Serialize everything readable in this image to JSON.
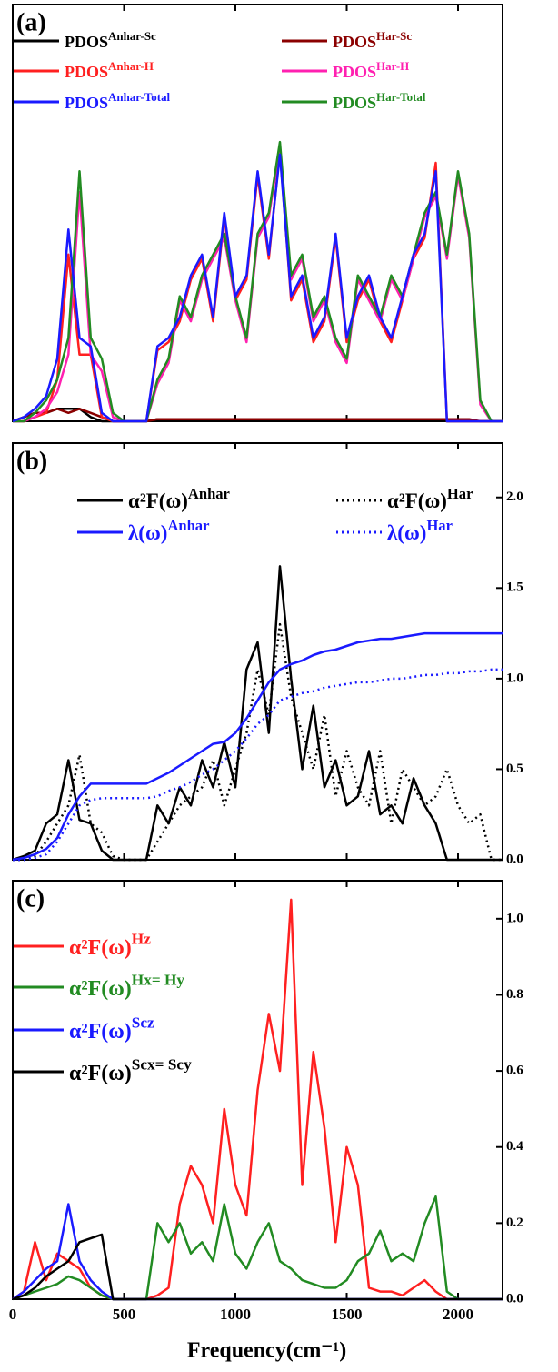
{
  "chart_data": [
    {
      "type": "line",
      "title": "(a)",
      "x": [
        0,
        50,
        100,
        150,
        200,
        250,
        300,
        350,
        400,
        450,
        500,
        550,
        600,
        650,
        700,
        750,
        800,
        850,
        900,
        950,
        1000,
        1050,
        1100,
        1150,
        1200,
        1250,
        1300,
        1350,
        1400,
        1450,
        1500,
        1550,
        1600,
        1650,
        1700,
        1750,
        1800,
        1850,
        1900,
        1950,
        2000,
        2050,
        2100,
        2150,
        2200
      ],
      "xlim": [
        0,
        2200
      ],
      "xticks": [
        0,
        500,
        1000,
        1500,
        2000
      ],
      "ylim": [
        0,
        1
      ],
      "series": [
        {
          "name": "PDOS",
          "superscript": "Anhar-Sc",
          "color": "#000000",
          "values": [
            0,
            0.01,
            0.02,
            0.02,
            0.03,
            0.03,
            0.03,
            0.01,
            0,
            0,
            0,
            0,
            0,
            0.005,
            0.005,
            0.005,
            0.005,
            0.005,
            0.005,
            0.005,
            0.005,
            0.005,
            0.005,
            0.005,
            0.005,
            0.005,
            0.005,
            0.005,
            0.005,
            0.005,
            0.005,
            0.005,
            0.005,
            0.005,
            0.005,
            0.005,
            0.005,
            0.005,
            0.005,
            0,
            0,
            0,
            0,
            0,
            0
          ]
        },
        {
          "name": "PDOS",
          "superscript": "Har-Sc",
          "color": "#8b0000",
          "values": [
            0,
            0.01,
            0.02,
            0.02,
            0.03,
            0.02,
            0.03,
            0.02,
            0.01,
            0,
            0,
            0,
            0,
            0.005,
            0.005,
            0.005,
            0.005,
            0.005,
            0.005,
            0.005,
            0.005,
            0.005,
            0.005,
            0.005,
            0.005,
            0.005,
            0.005,
            0.005,
            0.005,
            0.005,
            0.005,
            0.005,
            0.005,
            0.005,
            0.005,
            0.005,
            0.005,
            0.005,
            0.005,
            0.005,
            0.005,
            0.005,
            0,
            0,
            0
          ]
        },
        {
          "name": "PDOS",
          "superscript": "Anhar-H",
          "color": "#ff2020",
          "values": [
            0,
            0,
            0.01,
            0.02,
            0.1,
            0.4,
            0.16,
            0.16,
            0.01,
            0,
            0,
            0,
            0,
            0.17,
            0.19,
            0.24,
            0.34,
            0.39,
            0.24,
            0.49,
            0.29,
            0.34,
            0.59,
            0.39,
            0.65,
            0.29,
            0.34,
            0.19,
            0.24,
            0.44,
            0.19,
            0.29,
            0.34,
            0.24,
            0.19,
            0.29,
            0.39,
            0.44,
            0.62,
            0,
            0,
            0,
            0,
            0,
            0
          ]
        },
        {
          "name": "PDOS",
          "superscript": "Har-H",
          "color": "#ff20b0",
          "values": [
            0,
            0,
            0.01,
            0.03,
            0.07,
            0.16,
            0.55,
            0.16,
            0.12,
            0.01,
            0,
            0,
            0,
            0.09,
            0.14,
            0.29,
            0.24,
            0.34,
            0.39,
            0.44,
            0.29,
            0.19,
            0.44,
            0.49,
            0.66,
            0.34,
            0.39,
            0.24,
            0.29,
            0.19,
            0.14,
            0.34,
            0.29,
            0.24,
            0.34,
            0.29,
            0.39,
            0.49,
            0.54,
            0.39,
            0.59,
            0.44,
            0.04,
            0,
            0
          ]
        },
        {
          "name": "PDOS",
          "superscript": "Har-Total",
          "color": "#228b22",
          "values": [
            0,
            0,
            0.02,
            0.05,
            0.1,
            0.2,
            0.6,
            0.2,
            0.15,
            0.02,
            0,
            0,
            0,
            0.1,
            0.15,
            0.3,
            0.25,
            0.35,
            0.4,
            0.45,
            0.3,
            0.2,
            0.45,
            0.5,
            0.67,
            0.35,
            0.4,
            0.25,
            0.3,
            0.2,
            0.15,
            0.35,
            0.3,
            0.25,
            0.35,
            0.3,
            0.4,
            0.5,
            0.55,
            0.4,
            0.6,
            0.45,
            0.05,
            0,
            0
          ]
        },
        {
          "name": "PDOS",
          "superscript": "Anhar-Total",
          "color": "#1a1aff",
          "values": [
            0,
            0.01,
            0.03,
            0.06,
            0.15,
            0.46,
            0.2,
            0.18,
            0.02,
            0,
            0,
            0,
            0,
            0.18,
            0.2,
            0.25,
            0.35,
            0.4,
            0.25,
            0.5,
            0.3,
            0.35,
            0.6,
            0.4,
            0.64,
            0.3,
            0.35,
            0.2,
            0.25,
            0.45,
            0.2,
            0.3,
            0.35,
            0.25,
            0.2,
            0.3,
            0.4,
            0.45,
            0.6,
            0,
            0,
            0,
            0,
            0,
            0
          ]
        }
      ]
    },
    {
      "type": "line",
      "title": "(b)",
      "x": [
        0,
        50,
        100,
        150,
        200,
        250,
        300,
        350,
        400,
        450,
        500,
        550,
        600,
        650,
        700,
        750,
        800,
        850,
        900,
        950,
        1000,
        1050,
        1100,
        1150,
        1200,
        1250,
        1300,
        1350,
        1400,
        1450,
        1500,
        1550,
        1600,
        1650,
        1700,
        1750,
        1800,
        1850,
        1900,
        1950,
        2000,
        2050,
        2100,
        2150,
        2200
      ],
      "xlim": [
        0,
        2200
      ],
      "xticks": [
        0,
        500,
        1000,
        1500,
        2000
      ],
      "ylim": [
        0,
        2.3
      ],
      "yticks": [
        {
          "value": 0,
          "label": "0.0"
        },
        {
          "value": 0.5,
          "label": "0.5"
        },
        {
          "value": 1,
          "label": "1.0"
        },
        {
          "value": 1.5,
          "label": "1.5"
        },
        {
          "value": 2,
          "label": "2.0"
        }
      ],
      "series": [
        {
          "name": "α²F(ω)",
          "superscript": "Anhar",
          "color": "#000000",
          "style": "solid",
          "values": [
            0,
            0.02,
            0.05,
            0.2,
            0.25,
            0.55,
            0.22,
            0.2,
            0.05,
            0,
            0,
            0,
            0,
            0.3,
            0.2,
            0.4,
            0.3,
            0.55,
            0.4,
            0.65,
            0.4,
            1.05,
            1.2,
            0.7,
            1.62,
            1.0,
            0.5,
            0.85,
            0.4,
            0.55,
            0.3,
            0.35,
            0.6,
            0.25,
            0.3,
            0.2,
            0.45,
            0.3,
            0.2,
            0,
            0,
            0,
            0,
            0,
            0
          ]
        },
        {
          "name": "α²F(ω)",
          "superscript": "Har",
          "color": "#000000",
          "style": "dotted",
          "values": [
            0,
            0,
            0.02,
            0.1,
            0.2,
            0.3,
            0.58,
            0.2,
            0.15,
            0.02,
            0,
            0,
            0,
            0.1,
            0.2,
            0.3,
            0.35,
            0.4,
            0.55,
            0.3,
            0.5,
            0.7,
            1.05,
            0.8,
            1.3,
            0.9,
            0.7,
            0.5,
            0.8,
            0.35,
            0.6,
            0.4,
            0.3,
            0.6,
            0.2,
            0.5,
            0.4,
            0.3,
            0.35,
            0.5,
            0.3,
            0.2,
            0.25,
            0,
            0
          ]
        },
        {
          "name": "λ(ω)",
          "superscript": "Anhar",
          "color": "#1a1aff",
          "style": "solid",
          "values": [
            0,
            0.01,
            0.03,
            0.06,
            0.12,
            0.25,
            0.35,
            0.42,
            0.42,
            0.42,
            0.42,
            0.42,
            0.42,
            0.45,
            0.48,
            0.52,
            0.56,
            0.6,
            0.64,
            0.65,
            0.7,
            0.78,
            0.88,
            0.98,
            1.05,
            1.08,
            1.1,
            1.13,
            1.15,
            1.16,
            1.18,
            1.2,
            1.21,
            1.22,
            1.22,
            1.23,
            1.24,
            1.25,
            1.25,
            1.25,
            1.25,
            1.25,
            1.25,
            1.25,
            1.25
          ]
        },
        {
          "name": "λ(ω)",
          "superscript": "Har",
          "color": "#1a1aff",
          "style": "dotted",
          "values": [
            0,
            0,
            0.01,
            0.03,
            0.1,
            0.2,
            0.3,
            0.33,
            0.34,
            0.34,
            0.34,
            0.34,
            0.34,
            0.35,
            0.38,
            0.4,
            0.43,
            0.47,
            0.5,
            0.55,
            0.6,
            0.67,
            0.75,
            0.8,
            0.88,
            0.9,
            0.92,
            0.93,
            0.95,
            0.96,
            0.97,
            0.98,
            0.98,
            0.99,
            1.0,
            1.0,
            1.01,
            1.02,
            1.02,
            1.03,
            1.03,
            1.04,
            1.04,
            1.05,
            1.05
          ]
        }
      ]
    },
    {
      "type": "line",
      "title": "(c)",
      "xlabel": "Frequency(cm⁻¹)",
      "x": [
        0,
        50,
        100,
        150,
        200,
        250,
        300,
        350,
        400,
        450,
        500,
        550,
        600,
        650,
        700,
        750,
        800,
        850,
        900,
        950,
        1000,
        1050,
        1100,
        1150,
        1200,
        1250,
        1300,
        1350,
        1400,
        1450,
        1500,
        1550,
        1600,
        1650,
        1700,
        1750,
        1800,
        1850,
        1900,
        1950,
        2000,
        2050,
        2100,
        2150,
        2200
      ],
      "xlim": [
        0,
        2200
      ],
      "xticks": [
        0,
        500,
        1000,
        1500,
        2000
      ],
      "ylim": [
        0,
        1.1
      ],
      "yticks": [
        {
          "value": 0,
          "label": "0.0"
        },
        {
          "value": 0.2,
          "label": "0.2"
        },
        {
          "value": 0.4,
          "label": "0.4"
        },
        {
          "value": 0.6,
          "label": "0.6"
        },
        {
          "value": 0.8,
          "label": "0.8"
        },
        {
          "value": 1,
          "label": "1.0"
        }
      ],
      "series": [
        {
          "name": "α²F(ω)",
          "superscript": "Hz",
          "color": "#ff2020",
          "values": [
            0,
            0.02,
            0.15,
            0.05,
            0.12,
            0.1,
            0.08,
            0.03,
            0.01,
            0,
            0,
            0,
            0,
            0.01,
            0.03,
            0.25,
            0.35,
            0.3,
            0.2,
            0.5,
            0.3,
            0.22,
            0.55,
            0.75,
            0.6,
            1.05,
            0.3,
            0.65,
            0.45,
            0.15,
            0.4,
            0.3,
            0.03,
            0.02,
            0.02,
            0.01,
            0.03,
            0.05,
            0.02,
            0,
            0,
            0,
            0,
            0,
            0
          ]
        },
        {
          "name": "α²F(ω)",
          "superscript": "Hx= Hy",
          "color": "#228b22",
          "values": [
            0,
            0.01,
            0.02,
            0.03,
            0.04,
            0.06,
            0.05,
            0.03,
            0.01,
            0,
            0,
            0,
            0,
            0.2,
            0.15,
            0.2,
            0.12,
            0.15,
            0.1,
            0.25,
            0.12,
            0.08,
            0.15,
            0.2,
            0.1,
            0.08,
            0.05,
            0.04,
            0.03,
            0.03,
            0.05,
            0.1,
            0.12,
            0.18,
            0.1,
            0.12,
            0.1,
            0.2,
            0.27,
            0.02,
            0,
            0,
            0,
            0,
            0
          ]
        },
        {
          "name": "α²F(ω)",
          "superscript": "Scz",
          "color": "#1a1aff",
          "values": [
            0,
            0.02,
            0.05,
            0.08,
            0.1,
            0.25,
            0.1,
            0.05,
            0.02,
            0,
            0,
            0,
            0,
            0,
            0,
            0,
            0,
            0,
            0,
            0,
            0,
            0,
            0,
            0,
            0,
            0,
            0,
            0,
            0,
            0,
            0,
            0,
            0,
            0,
            0,
            0,
            0,
            0,
            0,
            0,
            0,
            0,
            0,
            0,
            0
          ]
        },
        {
          "name": "α²F(ω)",
          "superscript": "Scx= Scy",
          "color": "#000000",
          "values": [
            0,
            0.01,
            0.03,
            0.06,
            0.08,
            0.1,
            0.15,
            0.16,
            0.17,
            0,
            0,
            0,
            0,
            0,
            0,
            0,
            0,
            0,
            0,
            0,
            0,
            0,
            0,
            0,
            0,
            0,
            0,
            0,
            0,
            0,
            0,
            0,
            0,
            0,
            0,
            0,
            0,
            0,
            0,
            0,
            0,
            0,
            0,
            0,
            0
          ]
        }
      ]
    }
  ]
}
